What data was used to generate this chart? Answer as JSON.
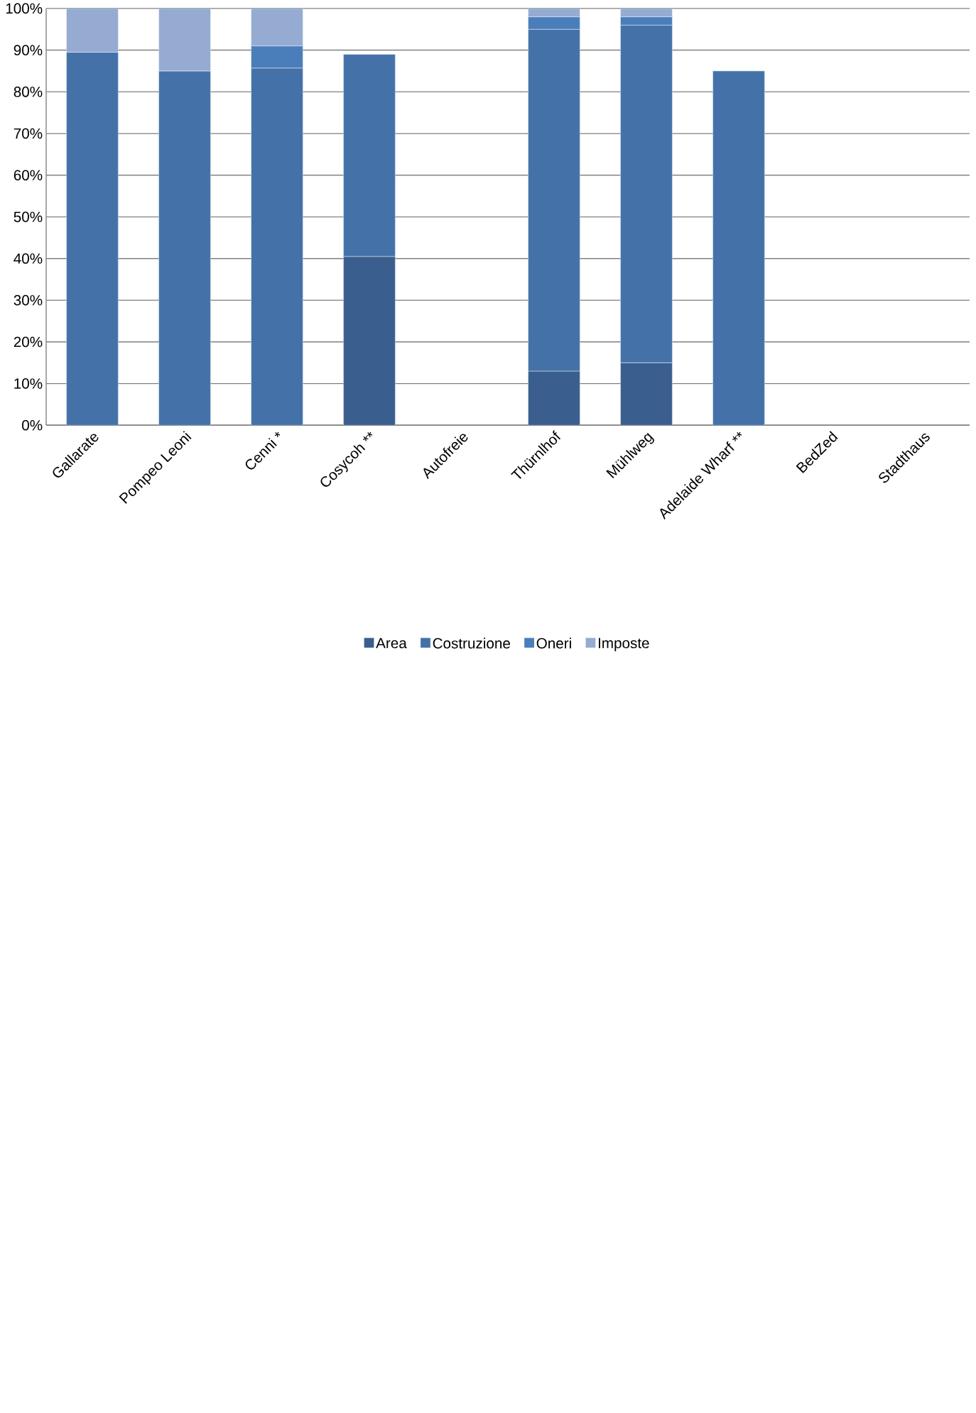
{
  "chart_data": {
    "type": "bar",
    "stacked": true,
    "categories": [
      "Gallarate",
      "Pompeo Leoni",
      "Cenni *",
      "Cosycoh **",
      "Autofreie",
      "Thürnlhof",
      "Mühlweg",
      "Adelaide Wharf **",
      "BedZed",
      "Stadthaus"
    ],
    "series": [
      {
        "name": "Area",
        "color": "#3a5f8f",
        "values": [
          null,
          null,
          null,
          40.5,
          null,
          13,
          15,
          null,
          null,
          null
        ]
      },
      {
        "name": "Costruzione",
        "color": "#4472a8",
        "values": [
          89.5,
          85,
          85.7,
          48.5,
          null,
          82,
          81,
          85,
          null,
          null
        ]
      },
      {
        "name": "Oneri",
        "color": "#4a7ebb",
        "values": [
          null,
          null,
          5.3,
          null,
          null,
          3,
          2,
          null,
          null,
          null
        ]
      },
      {
        "name": "Imposte",
        "color": "#95abd2",
        "values": [
          10.5,
          15,
          9,
          null,
          null,
          2,
          2,
          null,
          null,
          null
        ]
      }
    ],
    "ylim": [
      0,
      100
    ],
    "yticks": [
      {
        "value": 0,
        "label": "0%"
      },
      {
        "value": 10,
        "label": "10%"
      },
      {
        "value": 20,
        "label": "20%"
      },
      {
        "value": 30,
        "label": "30%"
      },
      {
        "value": 40,
        "label": "40%"
      },
      {
        "value": 50,
        "label": "50%"
      },
      {
        "value": 60,
        "label": "60%"
      },
      {
        "value": 70,
        "label": "70%"
      },
      {
        "value": 80,
        "label": "80%"
      },
      {
        "value": 90,
        "label": "90%"
      },
      {
        "value": 100,
        "label": "100%"
      }
    ],
    "grid": "y",
    "legend": "bottom"
  }
}
